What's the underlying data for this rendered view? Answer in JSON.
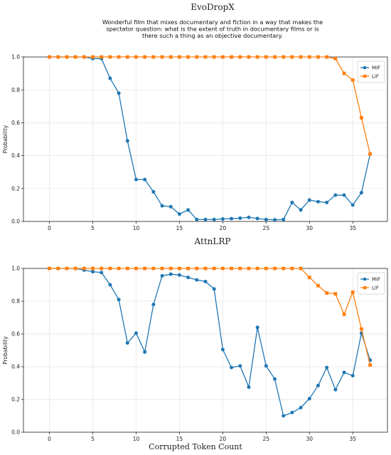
{
  "figure": {
    "xlabel": "Corrupted Token Count"
  },
  "chart_data": [
    {
      "type": "line",
      "title": "EvoDropX",
      "subtitle": "Wonderful film that mixes documentary and fiction in a way that makes the spectator question: what is the extent of truth in documentary films or is there such a thing as an objective documentary.",
      "xlabel": "",
      "ylabel": "Probability",
      "xlim": [
        -3,
        39
      ],
      "ylim": [
        0,
        1.0
      ],
      "xticks": [
        0,
        5,
        10,
        15,
        20,
        25,
        30,
        35
      ],
      "yticks": [
        0.0,
        0.2,
        0.4,
        0.6,
        0.8,
        1.0
      ],
      "grid": true,
      "legend": "upper right",
      "series": [
        {
          "name": "MiF",
          "color": "#1f77b4",
          "marker": "circle",
          "x": [
            0,
            1,
            2,
            3,
            4,
            5,
            6,
            7,
            8,
            9,
            10,
            11,
            12,
            13,
            14,
            15,
            16,
            17,
            18,
            19,
            20,
            21,
            22,
            23,
            24,
            25,
            26,
            27,
            28,
            29,
            30,
            31,
            32,
            33,
            34,
            35,
            36,
            37
          ],
          "y": [
            1.0,
            1.0,
            1.0,
            1.0,
            1.0,
            0.99,
            0.99,
            0.87,
            0.78,
            0.49,
            0.255,
            0.255,
            0.18,
            0.095,
            0.09,
            0.045,
            0.07,
            0.012,
            0.012,
            0.012,
            0.015,
            0.017,
            0.02,
            0.025,
            0.018,
            0.012,
            0.01,
            0.012,
            0.115,
            0.07,
            0.13,
            0.12,
            0.115,
            0.16,
            0.16,
            0.1,
            0.175,
            0.41
          ]
        },
        {
          "name": "LiF",
          "color": "#ff7f0e",
          "marker": "square",
          "x": [
            0,
            1,
            2,
            3,
            4,
            5,
            6,
            7,
            8,
            9,
            10,
            11,
            12,
            13,
            14,
            15,
            16,
            17,
            18,
            19,
            20,
            21,
            22,
            23,
            24,
            25,
            26,
            27,
            28,
            29,
            30,
            31,
            32,
            33,
            34,
            35,
            36,
            37
          ],
          "y": [
            1.0,
            1.0,
            1.0,
            1.0,
            1.0,
            1.0,
            1.0,
            1.0,
            1.0,
            1.0,
            1.0,
            1.0,
            1.0,
            1.0,
            1.0,
            1.0,
            1.0,
            1.0,
            1.0,
            1.0,
            1.0,
            1.0,
            1.0,
            1.0,
            1.0,
            1.0,
            1.0,
            1.0,
            1.0,
            1.0,
            1.0,
            1.0,
            1.0,
            0.99,
            0.9,
            0.86,
            0.63,
            0.41
          ]
        }
      ]
    },
    {
      "type": "line",
      "title": "AttnLRP",
      "subtitle": "",
      "xlabel": "Corrupted Token Count",
      "ylabel": "Probability",
      "xlim": [
        -3,
        39
      ],
      "ylim": [
        0,
        1.0
      ],
      "xticks": [
        0,
        5,
        10,
        15,
        20,
        25,
        30,
        35
      ],
      "yticks": [
        0.0,
        0.2,
        0.4,
        0.6,
        0.8,
        1.0
      ],
      "grid": true,
      "legend": "upper right",
      "series": [
        {
          "name": "MiF",
          "color": "#1f77b4",
          "marker": "circle",
          "x": [
            0,
            1,
            2,
            3,
            4,
            5,
            6,
            7,
            8,
            9,
            10,
            11,
            12,
            13,
            14,
            15,
            16,
            17,
            18,
            19,
            20,
            21,
            22,
            23,
            24,
            25,
            26,
            27,
            28,
            29,
            30,
            31,
            32,
            33,
            34,
            35,
            36,
            37
          ],
          "y": [
            1.0,
            1.0,
            1.0,
            1.0,
            0.99,
            0.98,
            0.975,
            0.9,
            0.81,
            0.545,
            0.605,
            0.49,
            0.78,
            0.955,
            0.965,
            0.96,
            0.945,
            0.93,
            0.92,
            0.875,
            0.505,
            0.395,
            0.405,
            0.275,
            0.64,
            0.405,
            0.325,
            0.1,
            0.12,
            0.15,
            0.205,
            0.285,
            0.395,
            0.26,
            0.365,
            0.345,
            0.605,
            0.44
          ]
        },
        {
          "name": "LiF",
          "color": "#ff7f0e",
          "marker": "square",
          "x": [
            0,
            1,
            2,
            3,
            4,
            5,
            6,
            7,
            8,
            9,
            10,
            11,
            12,
            13,
            14,
            15,
            16,
            17,
            18,
            19,
            20,
            21,
            22,
            23,
            24,
            25,
            26,
            27,
            28,
            29,
            30,
            31,
            32,
            33,
            34,
            35,
            36,
            37
          ],
          "y": [
            1.0,
            1.0,
            1.0,
            1.0,
            1.0,
            1.0,
            1.0,
            1.0,
            1.0,
            1.0,
            1.0,
            1.0,
            1.0,
            1.0,
            1.0,
            1.0,
            1.0,
            1.0,
            1.0,
            1.0,
            1.0,
            1.0,
            1.0,
            1.0,
            1.0,
            1.0,
            1.0,
            1.0,
            1.0,
            1.0,
            0.945,
            0.895,
            0.85,
            0.845,
            0.72,
            0.855,
            0.63,
            0.41
          ]
        }
      ]
    }
  ]
}
